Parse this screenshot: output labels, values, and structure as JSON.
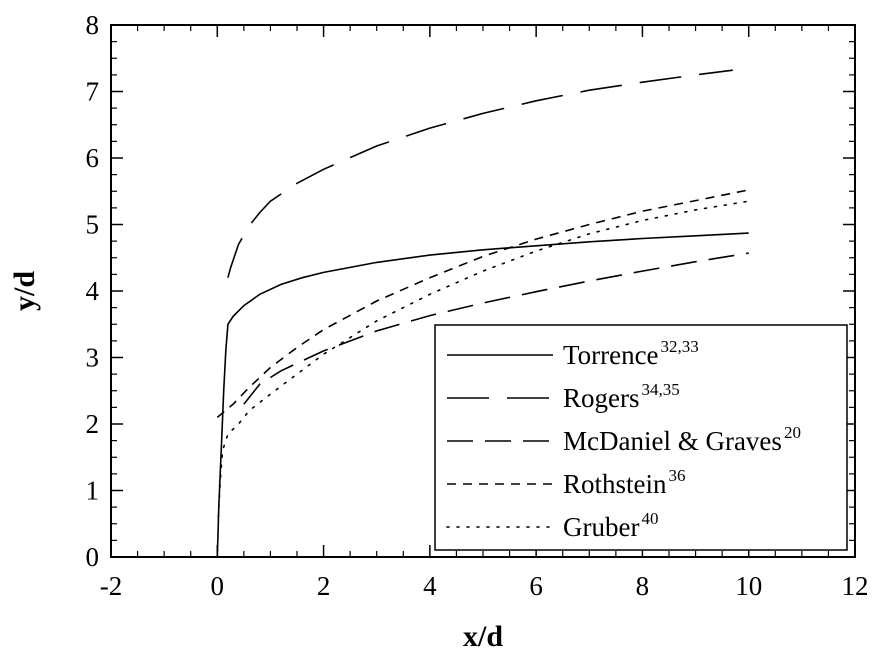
{
  "chart_data": {
    "type": "line",
    "xlabel": "x/d",
    "ylabel": "y/d",
    "xlim": [
      -2,
      12
    ],
    "ylim": [
      0,
      8
    ],
    "x_ticks": [
      -2,
      0,
      2,
      4,
      6,
      8,
      10,
      12
    ],
    "y_ticks": [
      0,
      1,
      2,
      3,
      4,
      5,
      6,
      7,
      8
    ],
    "x_tick_labels": [
      "-2",
      "0",
      "2",
      "4",
      "6",
      "8",
      "10",
      "12"
    ],
    "y_tick_labels": [
      "0",
      "1",
      "2",
      "3",
      "4",
      "5",
      "6",
      "7",
      "8"
    ],
    "grid": false,
    "legend_position": "bottom-right",
    "series": [
      {
        "name": "Torrence",
        "sup": "32,33",
        "dash": "solid",
        "x": [
          0,
          0.03,
          0.08,
          0.12,
          0.16,
          0.2,
          0.3,
          0.5,
          0.8,
          1.2,
          1.6,
          2,
          3,
          4,
          5,
          6,
          7,
          8,
          9,
          10
        ],
        "y": [
          0,
          0.8,
          1.7,
          2.5,
          3.1,
          3.5,
          3.62,
          3.78,
          3.95,
          4.1,
          4.2,
          4.28,
          4.43,
          4.54,
          4.62,
          4.68,
          4.74,
          4.79,
          4.83,
          4.87
        ]
      },
      {
        "name": "Rogers",
        "sup": "34,35",
        "dash": "longdash",
        "x": [
          0.2,
          0.25,
          0.4,
          0.6,
          0.8,
          1,
          1.5,
          2,
          3,
          4,
          5,
          6,
          7,
          8,
          9,
          9.7
        ],
        "y": [
          4.2,
          4.35,
          4.7,
          4.98,
          5.18,
          5.35,
          5.62,
          5.83,
          6.18,
          6.45,
          6.67,
          6.86,
          7.02,
          7.14,
          7.25,
          7.32
        ]
      },
      {
        "name": "McDaniel & Graves",
        "sup": "20",
        "dash": "dash",
        "x": [
          0.5,
          0.8,
          1.2,
          1.6,
          2,
          3,
          4,
          5,
          6,
          7,
          8,
          9,
          10
        ],
        "y": [
          2.3,
          2.6,
          2.8,
          2.95,
          3.1,
          3.4,
          3.63,
          3.82,
          3.99,
          4.15,
          4.3,
          4.44,
          4.57
        ]
      },
      {
        "name": "Rothstein",
        "sup": "36",
        "dash": "shortdash",
        "x": [
          0,
          0.3,
          0.6,
          1,
          1.5,
          2,
          3,
          4,
          5,
          6,
          7,
          8,
          9,
          10
        ],
        "y": [
          2.1,
          2.3,
          2.55,
          2.85,
          3.15,
          3.42,
          3.85,
          4.2,
          4.52,
          4.78,
          5.0,
          5.2,
          5.36,
          5.52
        ]
      },
      {
        "name": "Gruber",
        "sup": "40",
        "dash": "dot",
        "x": [
          0.02,
          0.06,
          0.1,
          0.2,
          0.4,
          0.6,
          1,
          1.5,
          2,
          3,
          4,
          5,
          6,
          7,
          8,
          9,
          10
        ],
        "y": [
          0.6,
          1.2,
          1.6,
          1.85,
          2.0,
          2.2,
          2.45,
          2.75,
          3.05,
          3.55,
          3.95,
          4.3,
          4.6,
          4.86,
          5.06,
          5.22,
          5.35
        ]
      }
    ]
  }
}
